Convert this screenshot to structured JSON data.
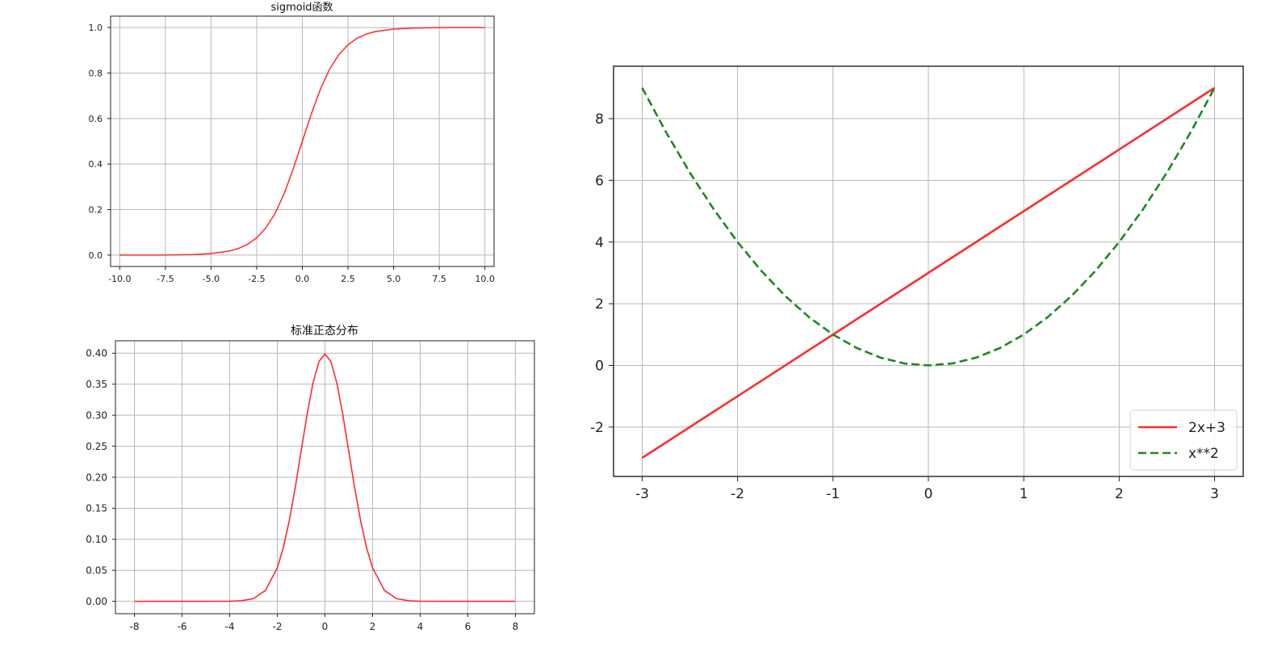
{
  "chart_data": [
    {
      "id": "sigmoid",
      "type": "line",
      "title": "sigmoid函数",
      "xlim": [
        -10.5,
        10.5
      ],
      "ylim": [
        -0.05,
        1.05
      ],
      "xticks": [
        -10,
        -7.5,
        -5,
        -2.5,
        0,
        2.5,
        5,
        7.5,
        10
      ],
      "xtick_labels": [
        "-10.0",
        "-7.5",
        "-5.0",
        "-2.5",
        "0.0",
        "2.5",
        "5.0",
        "7.5",
        "10.0"
      ],
      "yticks": [
        0,
        0.2,
        0.4,
        0.6,
        0.8,
        1.0
      ],
      "ytick_labels": [
        "0.0",
        "0.2",
        "0.4",
        "0.6",
        "0.8",
        "1.0"
      ],
      "grid": true,
      "series": [
        {
          "color": "#ff2a2a",
          "style": "solid",
          "x": [
            -10,
            -9,
            -8,
            -7,
            -6,
            -5,
            -4,
            -3.5,
            -3,
            -2.5,
            -2,
            -1.5,
            -1,
            -0.5,
            0,
            0.5,
            1,
            1.5,
            2,
            2.5,
            3,
            3.5,
            4,
            5,
            6,
            7,
            8,
            9,
            10
          ],
          "y": [
            0.0,
            0.0001,
            0.0003,
            0.0009,
            0.0025,
            0.0067,
            0.018,
            0.029,
            0.047,
            0.076,
            0.119,
            0.182,
            0.269,
            0.378,
            0.5,
            0.622,
            0.731,
            0.818,
            0.881,
            0.924,
            0.953,
            0.971,
            0.982,
            0.9933,
            0.9975,
            0.9991,
            0.9997,
            0.9999,
            1.0
          ]
        }
      ]
    },
    {
      "id": "normal",
      "type": "line",
      "title": "标准正态分布",
      "xlim": [
        -8.8,
        8.8
      ],
      "ylim": [
        -0.02,
        0.42
      ],
      "xticks": [
        -8,
        -6,
        -4,
        -2,
        0,
        2,
        4,
        6,
        8
      ],
      "xtick_labels": [
        "-8",
        "-6",
        "-4",
        "-2",
        "0",
        "2",
        "4",
        "6",
        "8"
      ],
      "yticks": [
        0,
        0.05,
        0.1,
        0.15,
        0.2,
        0.25,
        0.3,
        0.35,
        0.4
      ],
      "ytick_labels": [
        "0.00",
        "0.05",
        "0.10",
        "0.15",
        "0.20",
        "0.25",
        "0.30",
        "0.35",
        "0.40"
      ],
      "grid": true,
      "series": [
        {
          "color": "#ff2a2a",
          "style": "solid",
          "x": [
            -8,
            -6,
            -5,
            -4,
            -3.5,
            -3,
            -2.5,
            -2,
            -1.75,
            -1.5,
            -1.25,
            -1,
            -0.75,
            -0.5,
            -0.25,
            0,
            0.25,
            0.5,
            0.75,
            1,
            1.25,
            1.5,
            1.75,
            2,
            2.5,
            3,
            3.5,
            4,
            5,
            6,
            8
          ],
          "y": [
            0.0,
            0.0,
            0.0,
            0.0001,
            0.0009,
            0.0044,
            0.0175,
            0.054,
            0.0863,
            0.1295,
            0.1826,
            0.242,
            0.3011,
            0.3521,
            0.3867,
            0.3989,
            0.3867,
            0.3521,
            0.3011,
            0.242,
            0.1826,
            0.1295,
            0.0863,
            0.054,
            0.0175,
            0.0044,
            0.0009,
            0.0001,
            0.0,
            0.0,
            0.0
          ]
        }
      ]
    },
    {
      "id": "poly",
      "type": "line",
      "title": "",
      "xlim": [
        -3.3,
        3.3
      ],
      "ylim": [
        -3.6,
        9.7
      ],
      "xticks": [
        -3,
        -2,
        -1,
        0,
        1,
        2,
        3
      ],
      "xtick_labels": [
        "-3",
        "-2",
        "-1",
        "0",
        "1",
        "2",
        "3"
      ],
      "yticks": [
        -2,
        0,
        2,
        4,
        6,
        8
      ],
      "ytick_labels": [
        "-2",
        "0",
        "2",
        "4",
        "6",
        "8"
      ],
      "grid": true,
      "legend": "lower-right",
      "series": [
        {
          "name": "2x+3",
          "color": "#ff2a2a",
          "style": "solid",
          "x": [
            -3,
            3
          ],
          "y": [
            -3,
            9
          ]
        },
        {
          "name": "x**2",
          "color": "#1a8a1a",
          "style": "dashed",
          "x": [
            -3,
            -2.75,
            -2.5,
            -2.25,
            -2,
            -1.75,
            -1.5,
            -1.25,
            -1,
            -0.75,
            -0.5,
            -0.25,
            0,
            0.25,
            0.5,
            0.75,
            1,
            1.25,
            1.5,
            1.75,
            2,
            2.25,
            2.5,
            2.75,
            3
          ],
          "y": [
            9,
            7.5625,
            6.25,
            5.0625,
            4,
            3.0625,
            2.25,
            1.5625,
            1,
            0.5625,
            0.25,
            0.0625,
            0,
            0.0625,
            0.25,
            0.5625,
            1,
            1.5625,
            2.25,
            3.0625,
            4,
            5.0625,
            6.25,
            7.5625,
            9
          ]
        }
      ]
    }
  ]
}
